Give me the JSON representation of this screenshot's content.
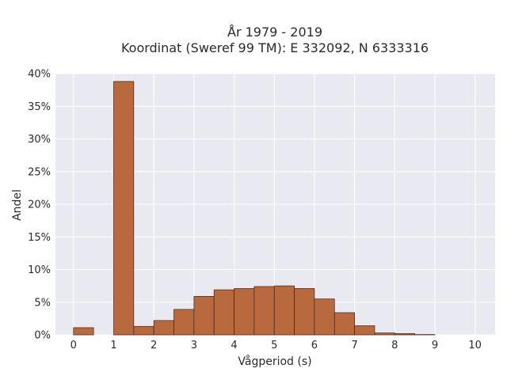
{
  "chart_data": {
    "type": "bar",
    "title": "År 1979 - 2019",
    "subtitle": "Koordinat (Sweref 99 TM): E 332092, N 6333316",
    "xlabel": "Vågperiod (s)",
    "ylabel": "Andel",
    "xlim": [
      -0.45,
      10.5
    ],
    "ylim": [
      0,
      0.4
    ],
    "x_ticks": [
      0,
      1,
      2,
      3,
      4,
      5,
      6,
      7,
      8,
      9,
      10
    ],
    "y_ticks": [
      0,
      0.05,
      0.1,
      0.15,
      0.2,
      0.25,
      0.3,
      0.35,
      0.4
    ],
    "y_tick_labels": [
      "0%",
      "5%",
      "10%",
      "15%",
      "20%",
      "25%",
      "30%",
      "35%",
      "40%"
    ],
    "bin_width": 0.5,
    "bins": [
      {
        "start": 0.0,
        "value": 0.011
      },
      {
        "start": 0.5,
        "value": 0.0
      },
      {
        "start": 1.0,
        "value": 0.388
      },
      {
        "start": 1.5,
        "value": 0.013
      },
      {
        "start": 2.0,
        "value": 0.022
      },
      {
        "start": 2.5,
        "value": 0.039
      },
      {
        "start": 3.0,
        "value": 0.059
      },
      {
        "start": 3.5,
        "value": 0.069
      },
      {
        "start": 4.0,
        "value": 0.071
      },
      {
        "start": 4.5,
        "value": 0.074
      },
      {
        "start": 5.0,
        "value": 0.075
      },
      {
        "start": 5.5,
        "value": 0.071
      },
      {
        "start": 6.0,
        "value": 0.055
      },
      {
        "start": 6.5,
        "value": 0.034
      },
      {
        "start": 7.0,
        "value": 0.014
      },
      {
        "start": 7.5,
        "value": 0.003
      },
      {
        "start": 8.0,
        "value": 0.002
      },
      {
        "start": 8.5,
        "value": 0.0005
      }
    ],
    "grid": true,
    "colors": {
      "bar_fill": "#b8693d",
      "bar_edge": "#3d2418",
      "plot_background": "#e9e9f1",
      "grid": "#ffffff"
    }
  }
}
